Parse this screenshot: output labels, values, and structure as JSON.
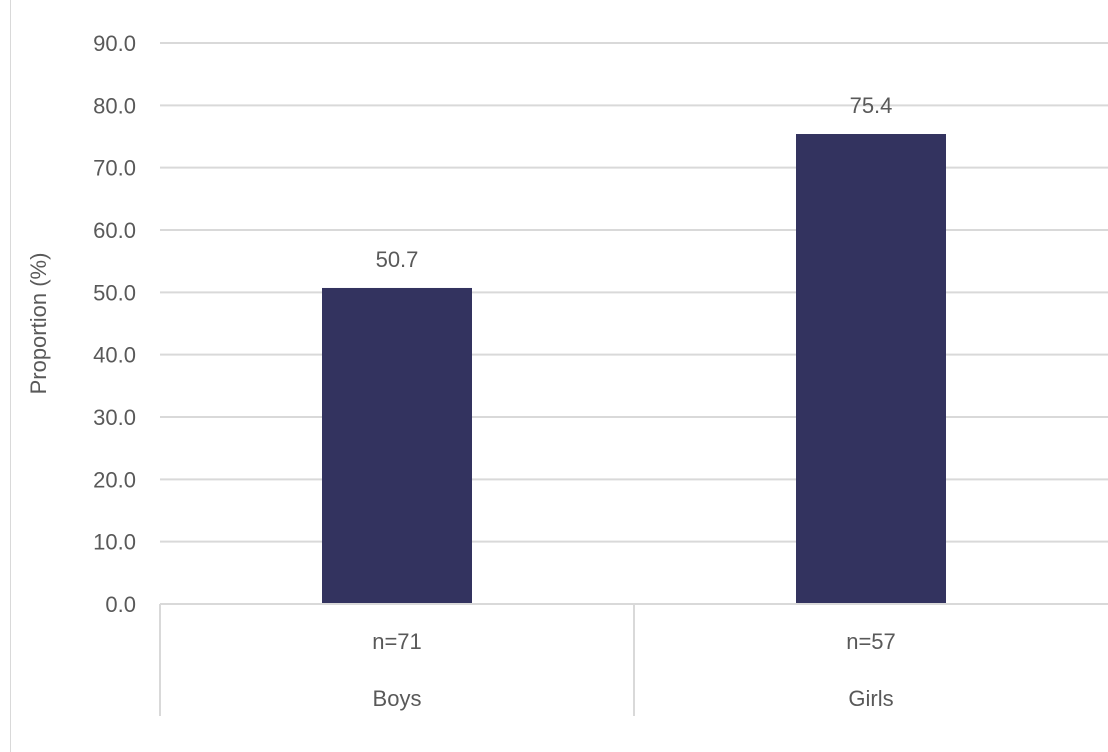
{
  "chart_data": {
    "type": "bar",
    "categories": [
      "Boys",
      "Girls"
    ],
    "sample_sizes": [
      "n=71",
      "n=57"
    ],
    "values": [
      50.7,
      75.4
    ],
    "value_labels": [
      "50.7",
      "75.4"
    ],
    "ylabel": "Proportion (%)",
    "xlabel": "",
    "title": "",
    "ylim": [
      0,
      90
    ],
    "ytick_step": 10,
    "ytick_labels": [
      "0.0",
      "10.0",
      "20.0",
      "30.0",
      "40.0",
      "50.0",
      "60.0",
      "70.0",
      "80.0",
      "90.0"
    ],
    "grid": true,
    "legend": "none",
    "bar_color": "#33335f",
    "grid_color": "#d9d9d9",
    "text_color": "#595959"
  }
}
